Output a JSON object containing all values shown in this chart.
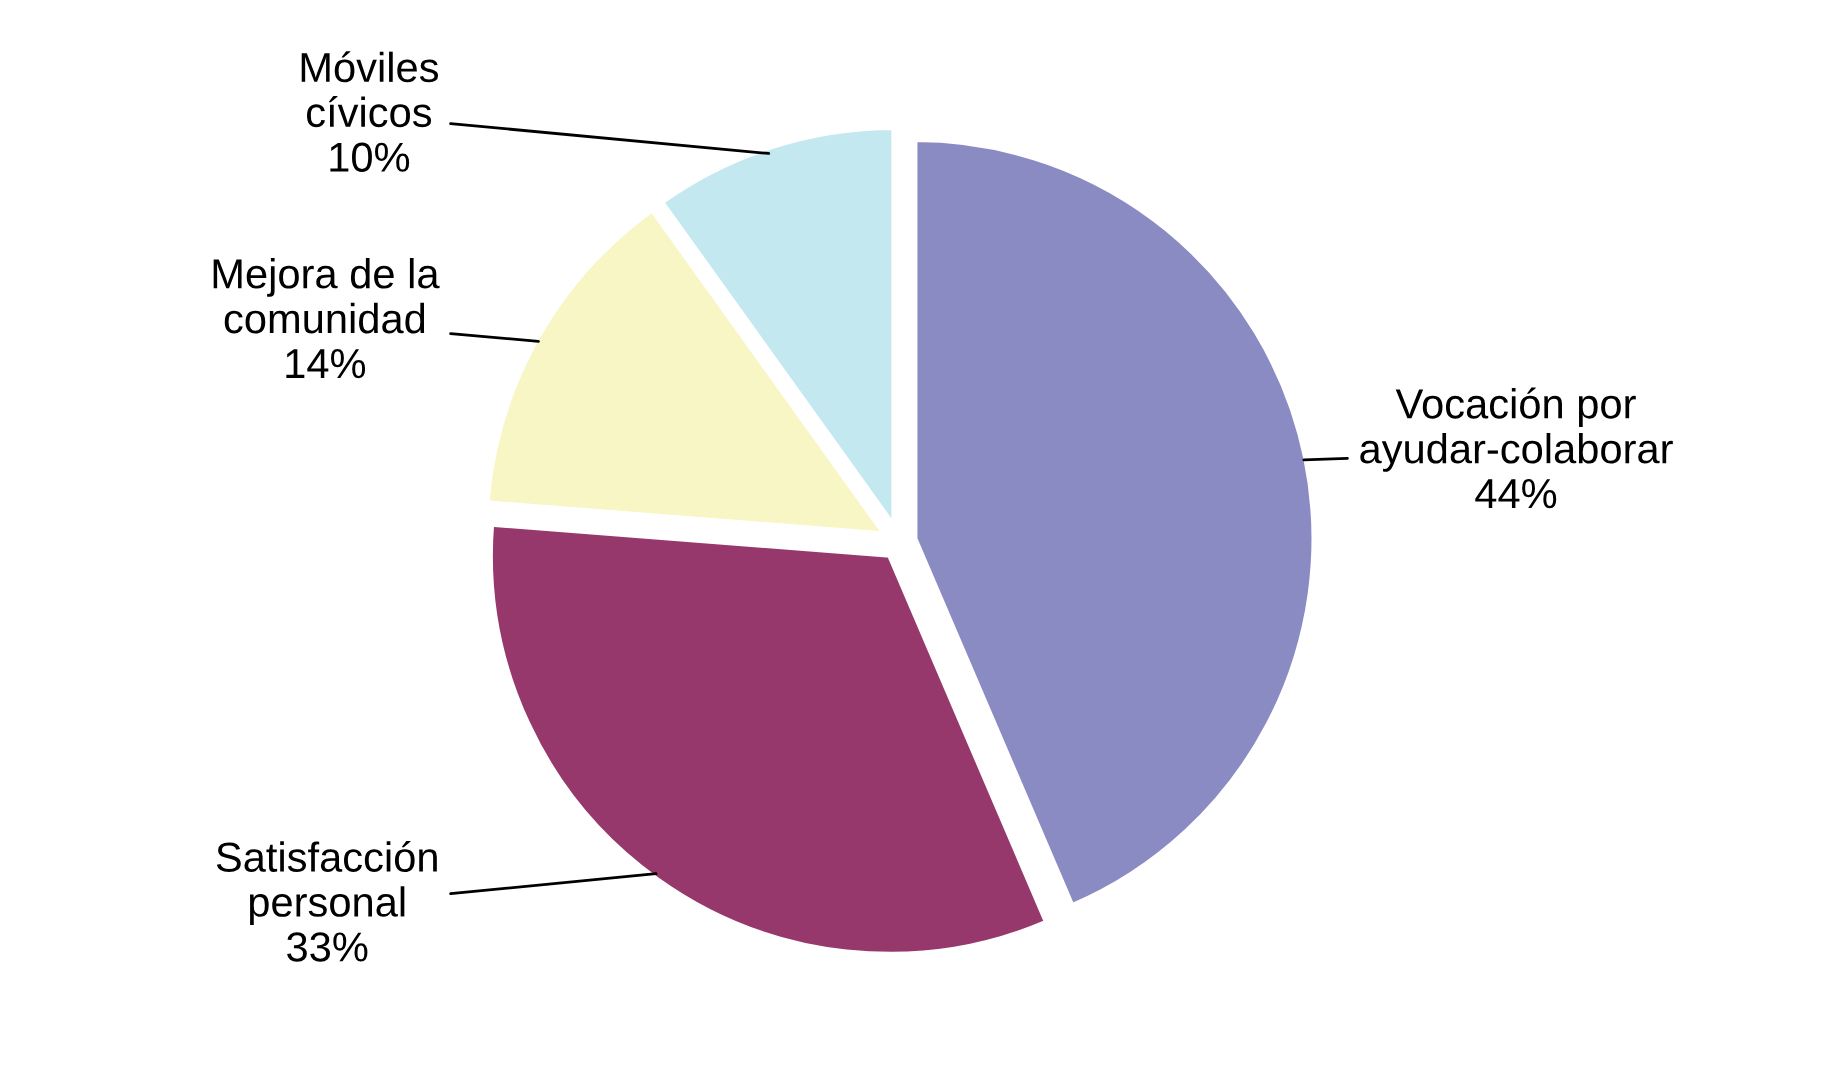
{
  "chart_data": {
    "type": "pie",
    "categories": [
      "Vocación por\nayudar-colaborar",
      "Satisfacción\npersonal",
      "Mejora de la\ncomunidad",
      "Móviles\ncívicos"
    ],
    "values": [
      44,
      33,
      14,
      10
    ],
    "value_labels": [
      "44%",
      "33%",
      "14%",
      "10%"
    ],
    "colors": [
      "#8b8bc4",
      "#96386b",
      "#f8f6c4",
      "#c4e8f0"
    ]
  }
}
